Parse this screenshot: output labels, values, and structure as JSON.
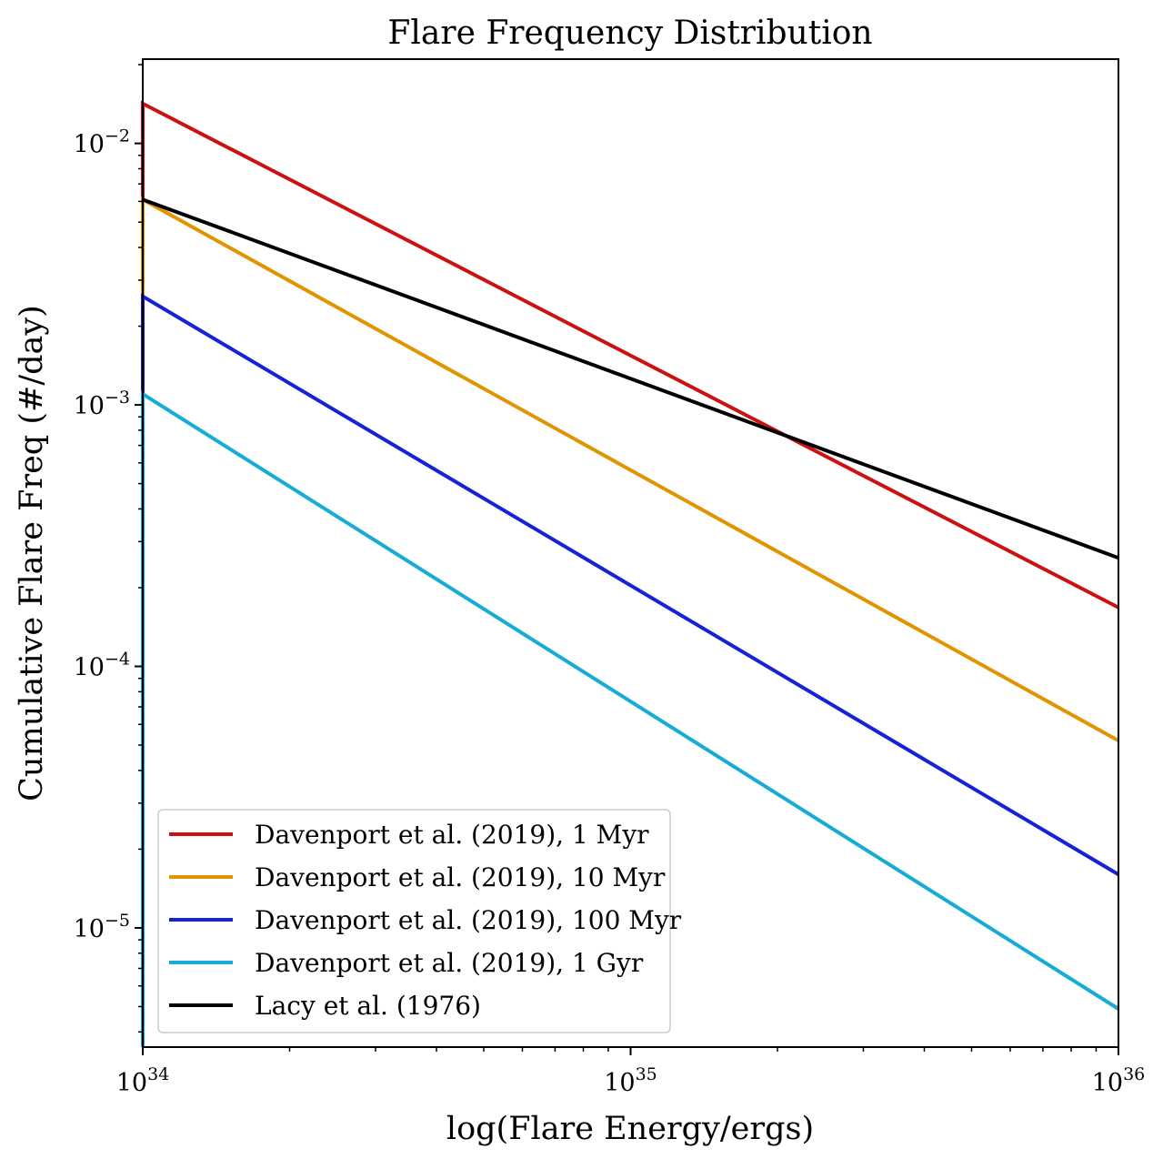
{
  "chart_data": {
    "type": "line",
    "title": "Flare Frequency Distribution",
    "xlabel": "log(Flare Energy/ergs)",
    "ylabel": "Cumulative Flare Freq (#/day)",
    "xscale": "log",
    "yscale": "log",
    "xlim": [
      1e+34,
      1e+36
    ],
    "ylim": [
      3.5e-06,
      0.021
    ],
    "x_ticks": [
      {
        "value": 1e+34,
        "base": "10",
        "exp": "34"
      },
      {
        "value": 1e+35,
        "base": "10",
        "exp": "35"
      },
      {
        "value": 1e+36,
        "base": "10",
        "exp": "36"
      }
    ],
    "y_ticks": [
      {
        "value": 0.01,
        "base": "10",
        "exp": "−2"
      },
      {
        "value": 0.001,
        "base": "10",
        "exp": "−3"
      },
      {
        "value": 0.0001,
        "base": "10",
        "exp": "−4"
      },
      {
        "value": 1e-05,
        "base": "10",
        "exp": "−5"
      }
    ],
    "grid": false,
    "legend_position": "lower-left",
    "series": [
      {
        "name": "Davenport et al. (2019), 1 Myr",
        "color": "#cc1111",
        "x": [
          1e+34,
          1e+36
        ],
        "y": [
          0.0142,
          0.000168
        ],
        "start_y": 0.0001
      },
      {
        "name": "Davenport et al. (2019), 10 Myr",
        "color": "#e09400",
        "x": [
          1e+34,
          1e+36
        ],
        "y": [
          0.0061,
          5.2e-05
        ],
        "start_y": 0.0026
      },
      {
        "name": "Davenport et al. (2019), 100 Myr",
        "color": "#1522d6",
        "x": [
          1e+34,
          1e+36
        ],
        "y": [
          0.0026,
          1.6e-05
        ],
        "start_y": 0.0011
      },
      {
        "name": "Davenport et al. (2019), 1 Gyr",
        "color": "#17acd6",
        "x": [
          1e+34,
          1e+36
        ],
        "y": [
          0.0011,
          4.9e-06
        ],
        "start_y": 3.5e-06
      },
      {
        "name": "Lacy et al. (1976)",
        "color": "#000000",
        "x": [
          1e+34,
          1e+36
        ],
        "y": [
          0.0061,
          0.00026
        ]
      }
    ]
  }
}
